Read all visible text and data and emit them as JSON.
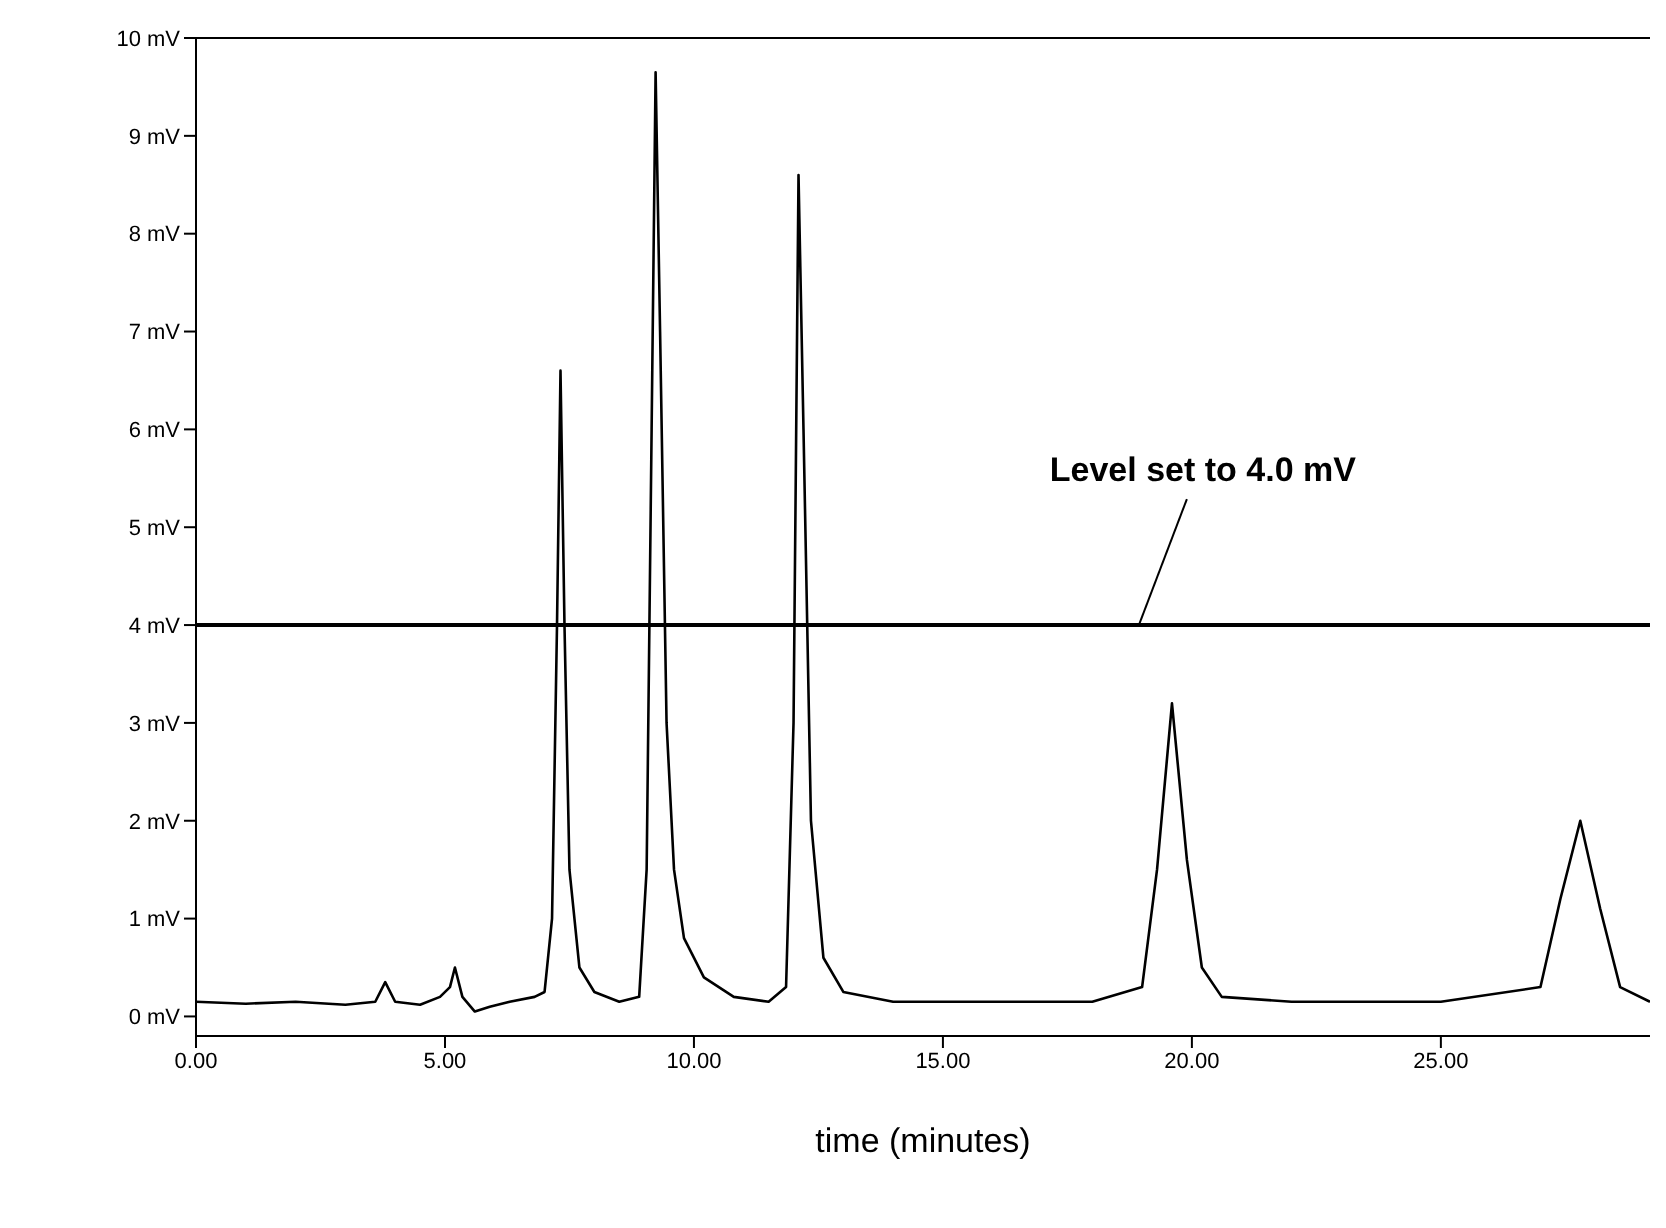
{
  "chart_data": {
    "type": "line",
    "xlabel": "time (minutes)",
    "x": [
      0,
      1,
      2,
      3,
      3.6,
      3.8,
      4.0,
      4.5,
      4.9,
      5.1,
      5.2,
      5.35,
      5.6,
      5.9,
      6.3,
      6.8,
      7.0,
      7.15,
      7.25,
      7.32,
      7.4,
      7.5,
      7.7,
      8.0,
      8.5,
      8.9,
      9.05,
      9.15,
      9.23,
      9.32,
      9.45,
      9.6,
      9.8,
      10.2,
      10.8,
      11.5,
      11.85,
      12.0,
      12.1,
      12.2,
      12.35,
      12.6,
      13.0,
      14,
      16,
      18,
      19.0,
      19.3,
      19.6,
      19.9,
      20.2,
      20.6,
      22,
      25,
      27.0,
      27.4,
      27.8,
      28.2,
      28.6,
      29.2
    ],
    "series": [
      {
        "color": "#000000",
        "values": [
          0.15,
          0.13,
          0.15,
          0.12,
          0.15,
          0.35,
          0.15,
          0.12,
          0.2,
          0.3,
          0.5,
          0.2,
          0.05,
          0.1,
          0.15,
          0.2,
          0.25,
          1.0,
          4.0,
          6.6,
          4.0,
          1.5,
          0.5,
          0.25,
          0.15,
          0.2,
          1.5,
          6.0,
          9.65,
          7.0,
          3.0,
          1.5,
          0.8,
          0.4,
          0.2,
          0.15,
          0.3,
          3.0,
          8.6,
          6.0,
          2.0,
          0.6,
          0.25,
          0.15,
          0.15,
          0.15,
          0.3,
          1.5,
          3.2,
          1.6,
          0.5,
          0.2,
          0.15,
          0.15,
          0.3,
          1.2,
          2.0,
          1.1,
          0.3,
          0.15
        ]
      }
    ],
    "xlim": [
      0,
      29.2
    ],
    "xticks": [
      {
        "value": 0,
        "label": "0.00"
      },
      {
        "value": 5,
        "label": "5.00"
      },
      {
        "value": 10,
        "label": "10.00"
      },
      {
        "value": 15,
        "label": "15.00"
      },
      {
        "value": 20,
        "label": "20.00"
      },
      {
        "value": 25,
        "label": "25.00"
      }
    ],
    "ylim": [
      -0.2,
      10
    ],
    "yticks": [
      {
        "value": 0,
        "label": "0 mV"
      },
      {
        "value": 1,
        "label": "1 mV"
      },
      {
        "value": 2,
        "label": "2 mV"
      },
      {
        "value": 3,
        "label": "3 mV"
      },
      {
        "value": 4,
        "label": "4 mV"
      },
      {
        "value": 5,
        "label": "5 mV"
      },
      {
        "value": 6,
        "label": "6 mV"
      },
      {
        "value": 7,
        "label": "7 mV"
      },
      {
        "value": 8,
        "label": "8 mV"
      },
      {
        "value": 9,
        "label": "9 mV"
      },
      {
        "value": 10,
        "label": "10 mV"
      }
    ],
    "ref_lines": [
      {
        "axis": "y",
        "value": 4.0,
        "label": "Level set to 4.0 mV",
        "color": "#000000"
      }
    ],
    "grid": false,
    "legend": false,
    "marker": "none",
    "line_style": "solid"
  }
}
